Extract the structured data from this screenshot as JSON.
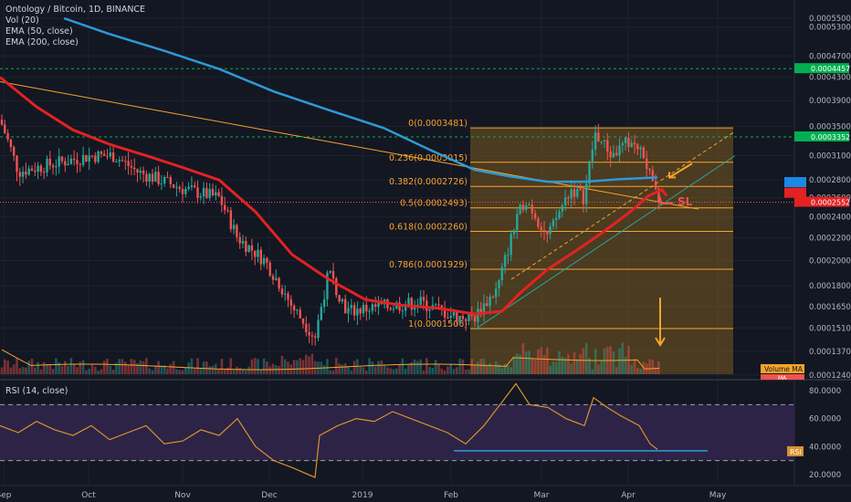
{
  "header": {
    "title": "Ontology / Bitcoin, 1D, BINANCE",
    "vol": "Vol (20)",
    "ema50": "EMA (50, close)",
    "ema200": "EMA (200, close)"
  },
  "rsi_header": "RSI (14, close)",
  "colors": {
    "background": "#131722",
    "bull": "#26a69a",
    "bear": "#ef5350",
    "ema50": "#e32222",
    "ema200": "#2e9ad6",
    "fib": "#f7a32b",
    "fib_fill": "#7a5a1f",
    "rsi": "#d9922e",
    "rsi_band": "#2d2346",
    "volume_ma": "#f7a32b",
    "marker_green": "#00b050",
    "marker_blue": "#1e88e5"
  },
  "chart_data": [
    {
      "type": "candlestick",
      "title": "Ontology / Bitcoin, 1D, BINANCE",
      "price_axis_labels": [
        "0.0005500",
        "0.0005300",
        "0.0004700",
        "0.0004300",
        "0.0003900",
        "0.0003500",
        "0.0003100",
        "0.0002800",
        "0.0002600",
        "0.0002400",
        "0.0002200",
        "0.0002000",
        "0.0001800",
        "0.0001650",
        "0.0001510",
        "0.0001370",
        "0.0001240"
      ],
      "price_axis_values": [
        0.00055,
        0.00053,
        0.00047,
        0.00043,
        0.00039,
        0.00035,
        0.00031,
        0.00028,
        0.00026,
        0.00024,
        0.00022,
        0.0002,
        0.00018,
        0.000165,
        0.000151,
        0.000137,
        0.000124
      ],
      "time_axis_labels": [
        "Sep",
        "Oct",
        "Nov",
        "Dec",
        "2019",
        "Feb",
        "Mar",
        "Apr",
        "May"
      ],
      "price_markers": [
        {
          "label": "0.0004457",
          "value": 0.0004457,
          "color": "#00b050"
        },
        {
          "label": "0.0003352",
          "value": 0.0003352,
          "color": "#00b050"
        },
        {
          "label": "EMA",
          "value": 0.000277,
          "color": "#1e88e5"
        },
        {
          "label": "EMA",
          "value": 0.000265,
          "color": "#e32222"
        },
        {
          "label": "0.0002552",
          "value": 0.0002552,
          "color": "#e32222"
        }
      ],
      "fib_levels": [
        {
          "label": "0(0.0003481)",
          "value": 0.0003481
        },
        {
          "label": "0.236(0.0003015)",
          "value": 0.0003015
        },
        {
          "label": "0.382(0.0002726)",
          "value": 0.0002726
        },
        {
          "label": "0.5(0.0002493)",
          "value": 0.0002493
        },
        {
          "label": "0.618(0.0002260)",
          "value": 0.000226
        },
        {
          "label": "0.786(0.0001929)",
          "value": 0.0001929
        },
        {
          "label": "1(0.0001506)",
          "value": 0.0001506
        }
      ],
      "annotations": {
        "sl_label": "SL",
        "volume_ma_label": "Volume MA",
        "ma_label": "MA"
      },
      "ema50": [
        [
          0,
          0.00043
        ],
        [
          40,
          0.00038
        ],
        [
          80,
          0.000345
        ],
        [
          120,
          0.000325
        ],
        [
          160,
          0.00031
        ],
        [
          200,
          0.000295
        ],
        [
          240,
          0.00028
        ],
        [
          280,
          0.000245
        ],
        [
          320,
          0.000205
        ],
        [
          360,
          0.000185
        ],
        [
          400,
          0.00017
        ],
        [
          440,
          0.000166
        ],
        [
          480,
          0.000164
        ],
        [
          520,
          0.00016
        ],
        [
          550,
          0.000162
        ],
        [
          570,
          0.000175
        ],
        [
          600,
          0.000193
        ],
        [
          630,
          0.000208
        ],
        [
          660,
          0.000225
        ],
        [
          690,
          0.000245
        ],
        [
          710,
          0.000262
        ],
        [
          725,
          0.000269
        ],
        [
          730,
          0.000262
        ]
      ],
      "ema200": [
        [
          70,
          0.00055
        ],
        [
          120,
          0.000515
        ],
        [
          180,
          0.00048
        ],
        [
          240,
          0.000445
        ],
        [
          300,
          0.000405
        ],
        [
          360,
          0.000375
        ],
        [
          420,
          0.000348
        ],
        [
          470,
          0.000318
        ],
        [
          520,
          0.000292
        ],
        [
          560,
          0.000284
        ],
        [
          600,
          0.000278
        ],
        [
          640,
          0.000278
        ],
        [
          680,
          0.000281
        ],
        [
          720,
          0.000283
        ]
      ]
    },
    {
      "type": "line",
      "title": "RSI (14, close)",
      "axis_labels": [
        "80.0000",
        "60.0000",
        "40.0000",
        "20.0000"
      ],
      "axis_values": [
        80,
        60,
        40,
        20
      ],
      "band": [
        30,
        70
      ],
      "marker_label": "RSI",
      "series": [
        {
          "values": [
            [
              0,
              55
            ],
            [
              20,
              50
            ],
            [
              40,
              58
            ],
            [
              60,
              52
            ],
            [
              80,
              48
            ],
            [
              100,
              55
            ],
            [
              120,
              45
            ],
            [
              140,
              50
            ],
            [
              160,
              55
            ],
            [
              180,
              42
            ],
            [
              200,
              44
            ],
            [
              220,
              52
            ],
            [
              240,
              48
            ],
            [
              260,
              60
            ],
            [
              280,
              40
            ],
            [
              300,
              30
            ],
            [
              320,
              25
            ],
            [
              345,
              18
            ],
            [
              350,
              48
            ],
            [
              370,
              55
            ],
            [
              390,
              60
            ],
            [
              410,
              58
            ],
            [
              430,
              65
            ],
            [
              450,
              60
            ],
            [
              470,
              55
            ],
            [
              490,
              50
            ],
            [
              510,
              42
            ],
            [
              530,
              55
            ],
            [
              550,
              72
            ],
            [
              565,
              85
            ],
            [
              580,
              70
            ],
            [
              600,
              68
            ],
            [
              620,
              60
            ],
            [
              640,
              55
            ],
            [
              650,
              75
            ],
            [
              665,
              68
            ],
            [
              680,
              62
            ],
            [
              700,
              55
            ],
            [
              712,
              42
            ],
            [
              720,
              38
            ]
          ]
        }
      ]
    }
  ]
}
